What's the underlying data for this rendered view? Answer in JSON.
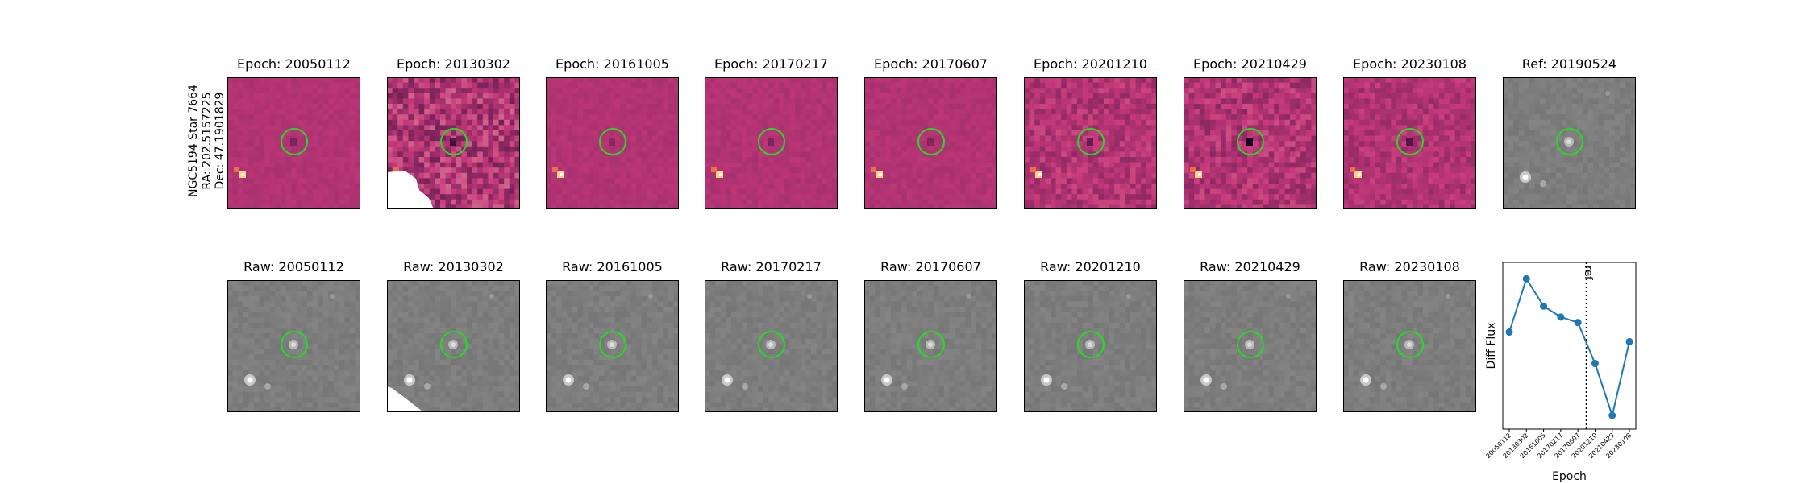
{
  "target": {
    "name": "NGC5194 Star 7664",
    "ra": "RA: 202.5157225",
    "dec": "Dec: 47.1901829"
  },
  "diff_panels": [
    {
      "title": "Epoch: 20050112"
    },
    {
      "title": "Epoch: 20130302"
    },
    {
      "title": "Epoch: 20161005"
    },
    {
      "title": "Epoch: 20170217"
    },
    {
      "title": "Epoch: 20170607"
    },
    {
      "title": "Epoch: 20201210"
    },
    {
      "title": "Epoch: 20210429"
    },
    {
      "title": "Epoch: 20230108"
    }
  ],
  "ref_panel": {
    "title": "Ref: 20190524"
  },
  "raw_panels": [
    {
      "title": "Raw: 20050112"
    },
    {
      "title": "Raw: 20130302"
    },
    {
      "title": "Raw: 20161005"
    },
    {
      "title": "Raw: 20170217"
    },
    {
      "title": "Raw: 20170607"
    },
    {
      "title": "Raw: 20201210"
    },
    {
      "title": "Raw: 20210429"
    },
    {
      "title": "Raw: 20230108"
    }
  ],
  "colors": {
    "diff_background": "#b0386e",
    "raw_background": "#7f7f7f",
    "aperture": "#22dd22",
    "line": "#1f77b4"
  },
  "chart_data": {
    "type": "line",
    "title": "",
    "xlabel": "Epoch",
    "ylabel": "Diff Flux",
    "categories": [
      "20050112",
      "20130302",
      "20161005",
      "20170217",
      "20170607",
      "20201210",
      "20210429",
      "20230108"
    ],
    "values": [
      0.46,
      0.85,
      0.65,
      0.57,
      0.53,
      0.23,
      -0.15,
      0.39
    ],
    "ylim": [
      -0.25,
      0.97
    ],
    "reference": {
      "label": "ref",
      "position": 4.5,
      "style": "dotted"
    },
    "grid": false,
    "yticks_visible": false
  }
}
